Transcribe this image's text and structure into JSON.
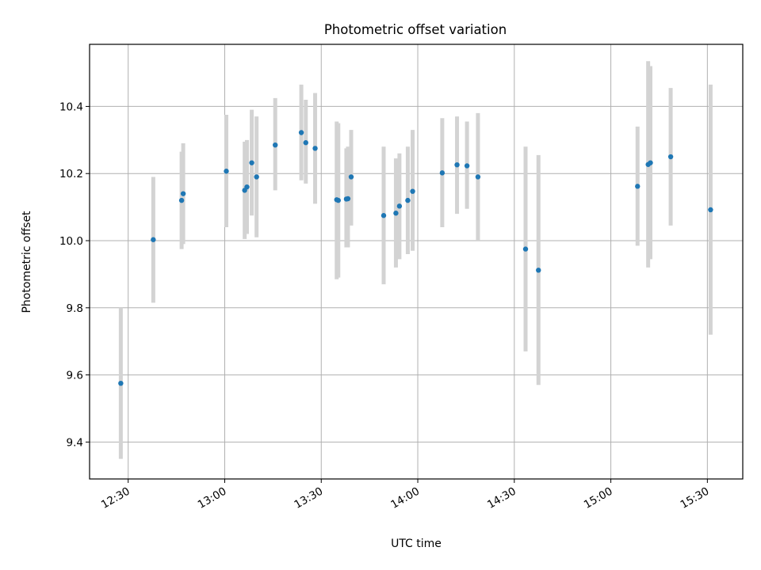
{
  "chart_data": {
    "type": "scatter",
    "title": "Photometric offset variation",
    "xlabel": "UTC time",
    "ylabel": "Photometric offset",
    "xlim_minutes": [
      738,
      941
    ],
    "ylim": [
      9.29,
      10.585
    ],
    "grid": true,
    "colors": {
      "point": "#1f77b4",
      "errorbar": "#d3d3d3",
      "grid": "#b0b0b0"
    },
    "x_ticks": [
      {
        "label": "12:30",
        "minutes": 750
      },
      {
        "label": "13:00",
        "minutes": 780
      },
      {
        "label": "13:30",
        "minutes": 810
      },
      {
        "label": "14:00",
        "minutes": 840
      },
      {
        "label": "14:30",
        "minutes": 870
      },
      {
        "label": "15:00",
        "minutes": 900
      },
      {
        "label": "15:30",
        "minutes": 930
      }
    ],
    "y_ticks": [
      {
        "label": "9.4",
        "value": 9.4
      },
      {
        "label": "9.6",
        "value": 9.6
      },
      {
        "label": "9.8",
        "value": 9.8
      },
      {
        "label": "10.0",
        "value": 10.0
      },
      {
        "label": "10.2",
        "value": 10.2
      },
      {
        "label": "10.4",
        "value": 10.4
      }
    ],
    "points": [
      {
        "t": 747.7,
        "y": 9.575,
        "lo": 9.35,
        "hi": 9.8
      },
      {
        "t": 757.8,
        "y": 10.003,
        "lo": 9.815,
        "hi": 10.19
      },
      {
        "t": 766.6,
        "y": 10.12,
        "lo": 9.975,
        "hi": 10.265
      },
      {
        "t": 767.1,
        "y": 10.14,
        "lo": 9.99,
        "hi": 10.29
      },
      {
        "t": 780.5,
        "y": 10.207,
        "lo": 10.04,
        "hi": 10.375
      },
      {
        "t": 786.2,
        "y": 10.15,
        "lo": 10.005,
        "hi": 10.295
      },
      {
        "t": 786.9,
        "y": 10.16,
        "lo": 10.02,
        "hi": 10.3
      },
      {
        "t": 788.4,
        "y": 10.232,
        "lo": 10.075,
        "hi": 10.39
      },
      {
        "t": 789.9,
        "y": 10.19,
        "lo": 10.01,
        "hi": 10.37
      },
      {
        "t": 795.7,
        "y": 10.285,
        "lo": 10.15,
        "hi": 10.425
      },
      {
        "t": 803.8,
        "y": 10.322,
        "lo": 10.18,
        "hi": 10.465
      },
      {
        "t": 805.2,
        "y": 10.292,
        "lo": 10.17,
        "hi": 10.42
      },
      {
        "t": 808.1,
        "y": 10.275,
        "lo": 10.11,
        "hi": 10.44
      },
      {
        "t": 814.8,
        "y": 10.122,
        "lo": 9.885,
        "hi": 10.355
      },
      {
        "t": 815.3,
        "y": 10.12,
        "lo": 9.89,
        "hi": 10.35
      },
      {
        "t": 817.8,
        "y": 10.124,
        "lo": 9.98,
        "hi": 10.275
      },
      {
        "t": 818.3,
        "y": 10.125,
        "lo": 9.98,
        "hi": 10.28
      },
      {
        "t": 819.3,
        "y": 10.19,
        "lo": 10.045,
        "hi": 10.33
      },
      {
        "t": 829.4,
        "y": 10.075,
        "lo": 9.87,
        "hi": 10.28
      },
      {
        "t": 833.2,
        "y": 10.082,
        "lo": 9.92,
        "hi": 10.245
      },
      {
        "t": 834.3,
        "y": 10.103,
        "lo": 9.945,
        "hi": 10.26
      },
      {
        "t": 836.9,
        "y": 10.12,
        "lo": 9.96,
        "hi": 10.28
      },
      {
        "t": 838.4,
        "y": 10.147,
        "lo": 9.97,
        "hi": 10.33
      },
      {
        "t": 847.6,
        "y": 10.202,
        "lo": 10.04,
        "hi": 10.365
      },
      {
        "t": 852.2,
        "y": 10.226,
        "lo": 10.08,
        "hi": 10.37
      },
      {
        "t": 855.3,
        "y": 10.223,
        "lo": 10.095,
        "hi": 10.355
      },
      {
        "t": 858.7,
        "y": 10.19,
        "lo": 10.0,
        "hi": 10.38
      },
      {
        "t": 873.5,
        "y": 9.975,
        "lo": 9.67,
        "hi": 10.28
      },
      {
        "t": 877.5,
        "y": 9.912,
        "lo": 9.57,
        "hi": 10.255
      },
      {
        "t": 908.3,
        "y": 10.162,
        "lo": 9.985,
        "hi": 10.34
      },
      {
        "t": 911.6,
        "y": 10.227,
        "lo": 9.92,
        "hi": 10.535
      },
      {
        "t": 912.3,
        "y": 10.232,
        "lo": 9.945,
        "hi": 10.52
      },
      {
        "t": 918.6,
        "y": 10.25,
        "lo": 10.045,
        "hi": 10.455
      },
      {
        "t": 931.0,
        "y": 10.092,
        "lo": 9.72,
        "hi": 10.465
      }
    ]
  }
}
